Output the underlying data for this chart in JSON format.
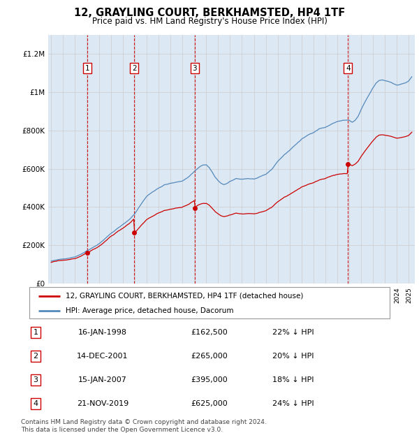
{
  "title": "12, GRAYLING COURT, BERKHAMSTED, HP4 1TF",
  "subtitle": "Price paid vs. HM Land Registry's House Price Index (HPI)",
  "ylim": [
    0,
    1300000
  ],
  "yticks": [
    0,
    200000,
    400000,
    600000,
    800000,
    1000000,
    1200000
  ],
  "ytick_labels": [
    "£0",
    "£200K",
    "£400K",
    "£600K",
    "£800K",
    "£1M",
    "£1.2M"
  ],
  "xlim_start": 1994.75,
  "xlim_end": 2025.5,
  "legend_label_red": "12, GRAYLING COURT, BERKHAMSTED, HP4 1TF (detached house)",
  "legend_label_blue": "HPI: Average price, detached house, Dacorum",
  "footer": "Contains HM Land Registry data © Crown copyright and database right 2024.\nThis data is licensed under the Open Government Licence v3.0.",
  "sales": [
    {
      "num": 1,
      "date_dec": 1998.04,
      "price": 162500,
      "label": "16-JAN-1998",
      "pct": "22% ↓ HPI"
    },
    {
      "num": 2,
      "date_dec": 2001.96,
      "price": 265000,
      "label": "14-DEC-2001",
      "pct": "20% ↓ HPI"
    },
    {
      "num": 3,
      "date_dec": 2007.04,
      "price": 395000,
      "label": "15-JAN-2007",
      "pct": "18% ↓ HPI"
    },
    {
      "num": 4,
      "date_dec": 2019.9,
      "price": 625000,
      "label": "21-NOV-2019",
      "pct": "24% ↓ HPI"
    }
  ],
  "grid_color": "#cccccc",
  "red_color": "#cc0000",
  "blue_color": "#5588bb",
  "band_color": "#dce9f5"
}
